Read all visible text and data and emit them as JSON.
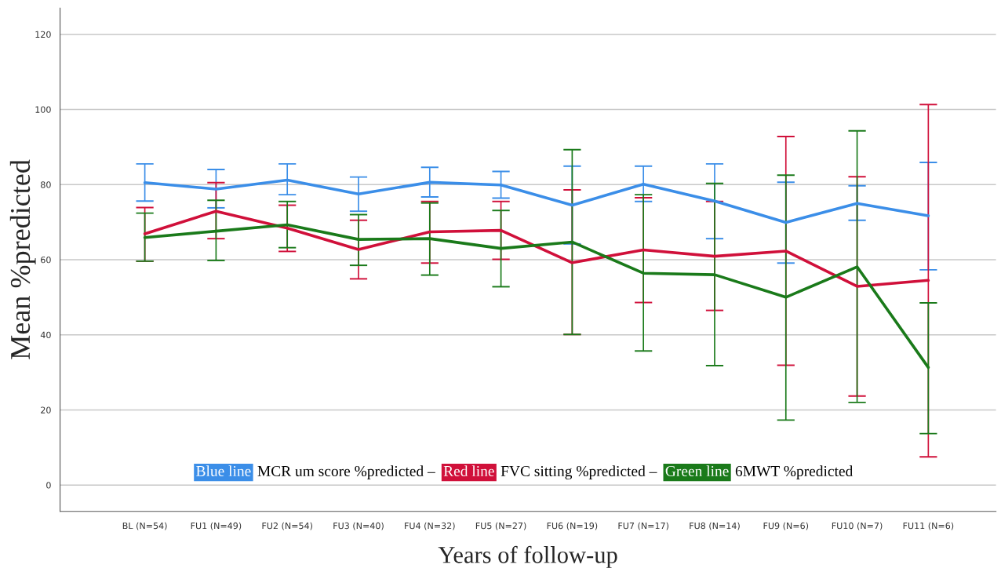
{
  "chart_data": {
    "type": "line",
    "xlabel": "Years of follow-up",
    "ylabel": "Mean %predicted",
    "categories": [
      "BL (N=54)",
      "FU1 (N=49)",
      "FU2 (N=54)",
      "FU3 (N=40)",
      "FU4 (N=32)",
      "FU5 (N=27)",
      "FU6 (N=19)",
      "FU7 (N=17)",
      "FU8 (N=14)",
      "FU9 (N=6)",
      "FU10 (N=7)",
      "FU11 (N=6)"
    ],
    "series": [
      {
        "name": "MCR um score %predicted",
        "color": "#3b8ee8",
        "values": [
          80.5,
          78.8,
          81.2,
          77.5,
          80.6,
          79.9,
          74.5,
          80.1,
          75.6,
          69.9,
          75.0,
          71.7
        ],
        "errors": [
          [
            75.6,
            85.5
          ],
          [
            73.8,
            84.0
          ],
          [
            77.3,
            85.5
          ],
          [
            72.9,
            82.0
          ],
          [
            76.7,
            84.6
          ],
          [
            76.4,
            83.5
          ],
          [
            64.2,
            84.9
          ],
          [
            75.5,
            84.9
          ],
          [
            65.6,
            85.5
          ],
          [
            59.1,
            80.6
          ],
          [
            70.5,
            79.7
          ],
          [
            57.3,
            85.9
          ]
        ]
      },
      {
        "name": "FVC sitting %predicted",
        "color": "#d0103a",
        "values": [
          66.9,
          72.9,
          68.4,
          62.7,
          67.4,
          67.8,
          59.2,
          62.6,
          60.9,
          62.3,
          52.9,
          54.5
        ],
        "errors": [
          [
            59.6,
            73.9
          ],
          [
            65.6,
            80.5
          ],
          [
            62.2,
            74.5
          ],
          [
            54.9,
            70.5
          ],
          [
            59.1,
            75.5
          ],
          [
            60.1,
            75.5
          ],
          [
            40.1,
            78.6
          ],
          [
            48.6,
            76.5
          ],
          [
            46.5,
            75.5
          ],
          [
            31.9,
            92.8
          ],
          [
            23.7,
            82.1
          ],
          [
            7.5,
            101.3
          ]
        ]
      },
      {
        "name": "6MWT %predicted",
        "color": "#1a7a1a",
        "values": [
          65.9,
          67.6,
          69.3,
          65.4,
          65.6,
          63.0,
          64.7,
          56.4,
          56.0,
          50.0,
          58.1,
          31.3
        ],
        "errors": [
          [
            59.6,
            72.4
          ],
          [
            59.8,
            75.8
          ],
          [
            63.2,
            75.5
          ],
          [
            58.5,
            72.0
          ],
          [
            55.9,
            75.1
          ],
          [
            52.8,
            73.1
          ],
          [
            40.1,
            89.3
          ],
          [
            35.7,
            77.3
          ],
          [
            31.8,
            80.3
          ],
          [
            17.3,
            82.5
          ],
          [
            22.0,
            94.3
          ],
          [
            13.7,
            48.5
          ]
        ]
      }
    ],
    "annotations": [
      "Blue line",
      "Red line",
      "Green line",
      "–"
    ],
    "ylim": [
      -7,
      127
    ],
    "yticks": [
      0,
      20,
      40,
      60,
      80,
      100,
      120
    ],
    "grid": "y",
    "legend": "bottom",
    "marker": "none",
    "line_style": "solid"
  }
}
